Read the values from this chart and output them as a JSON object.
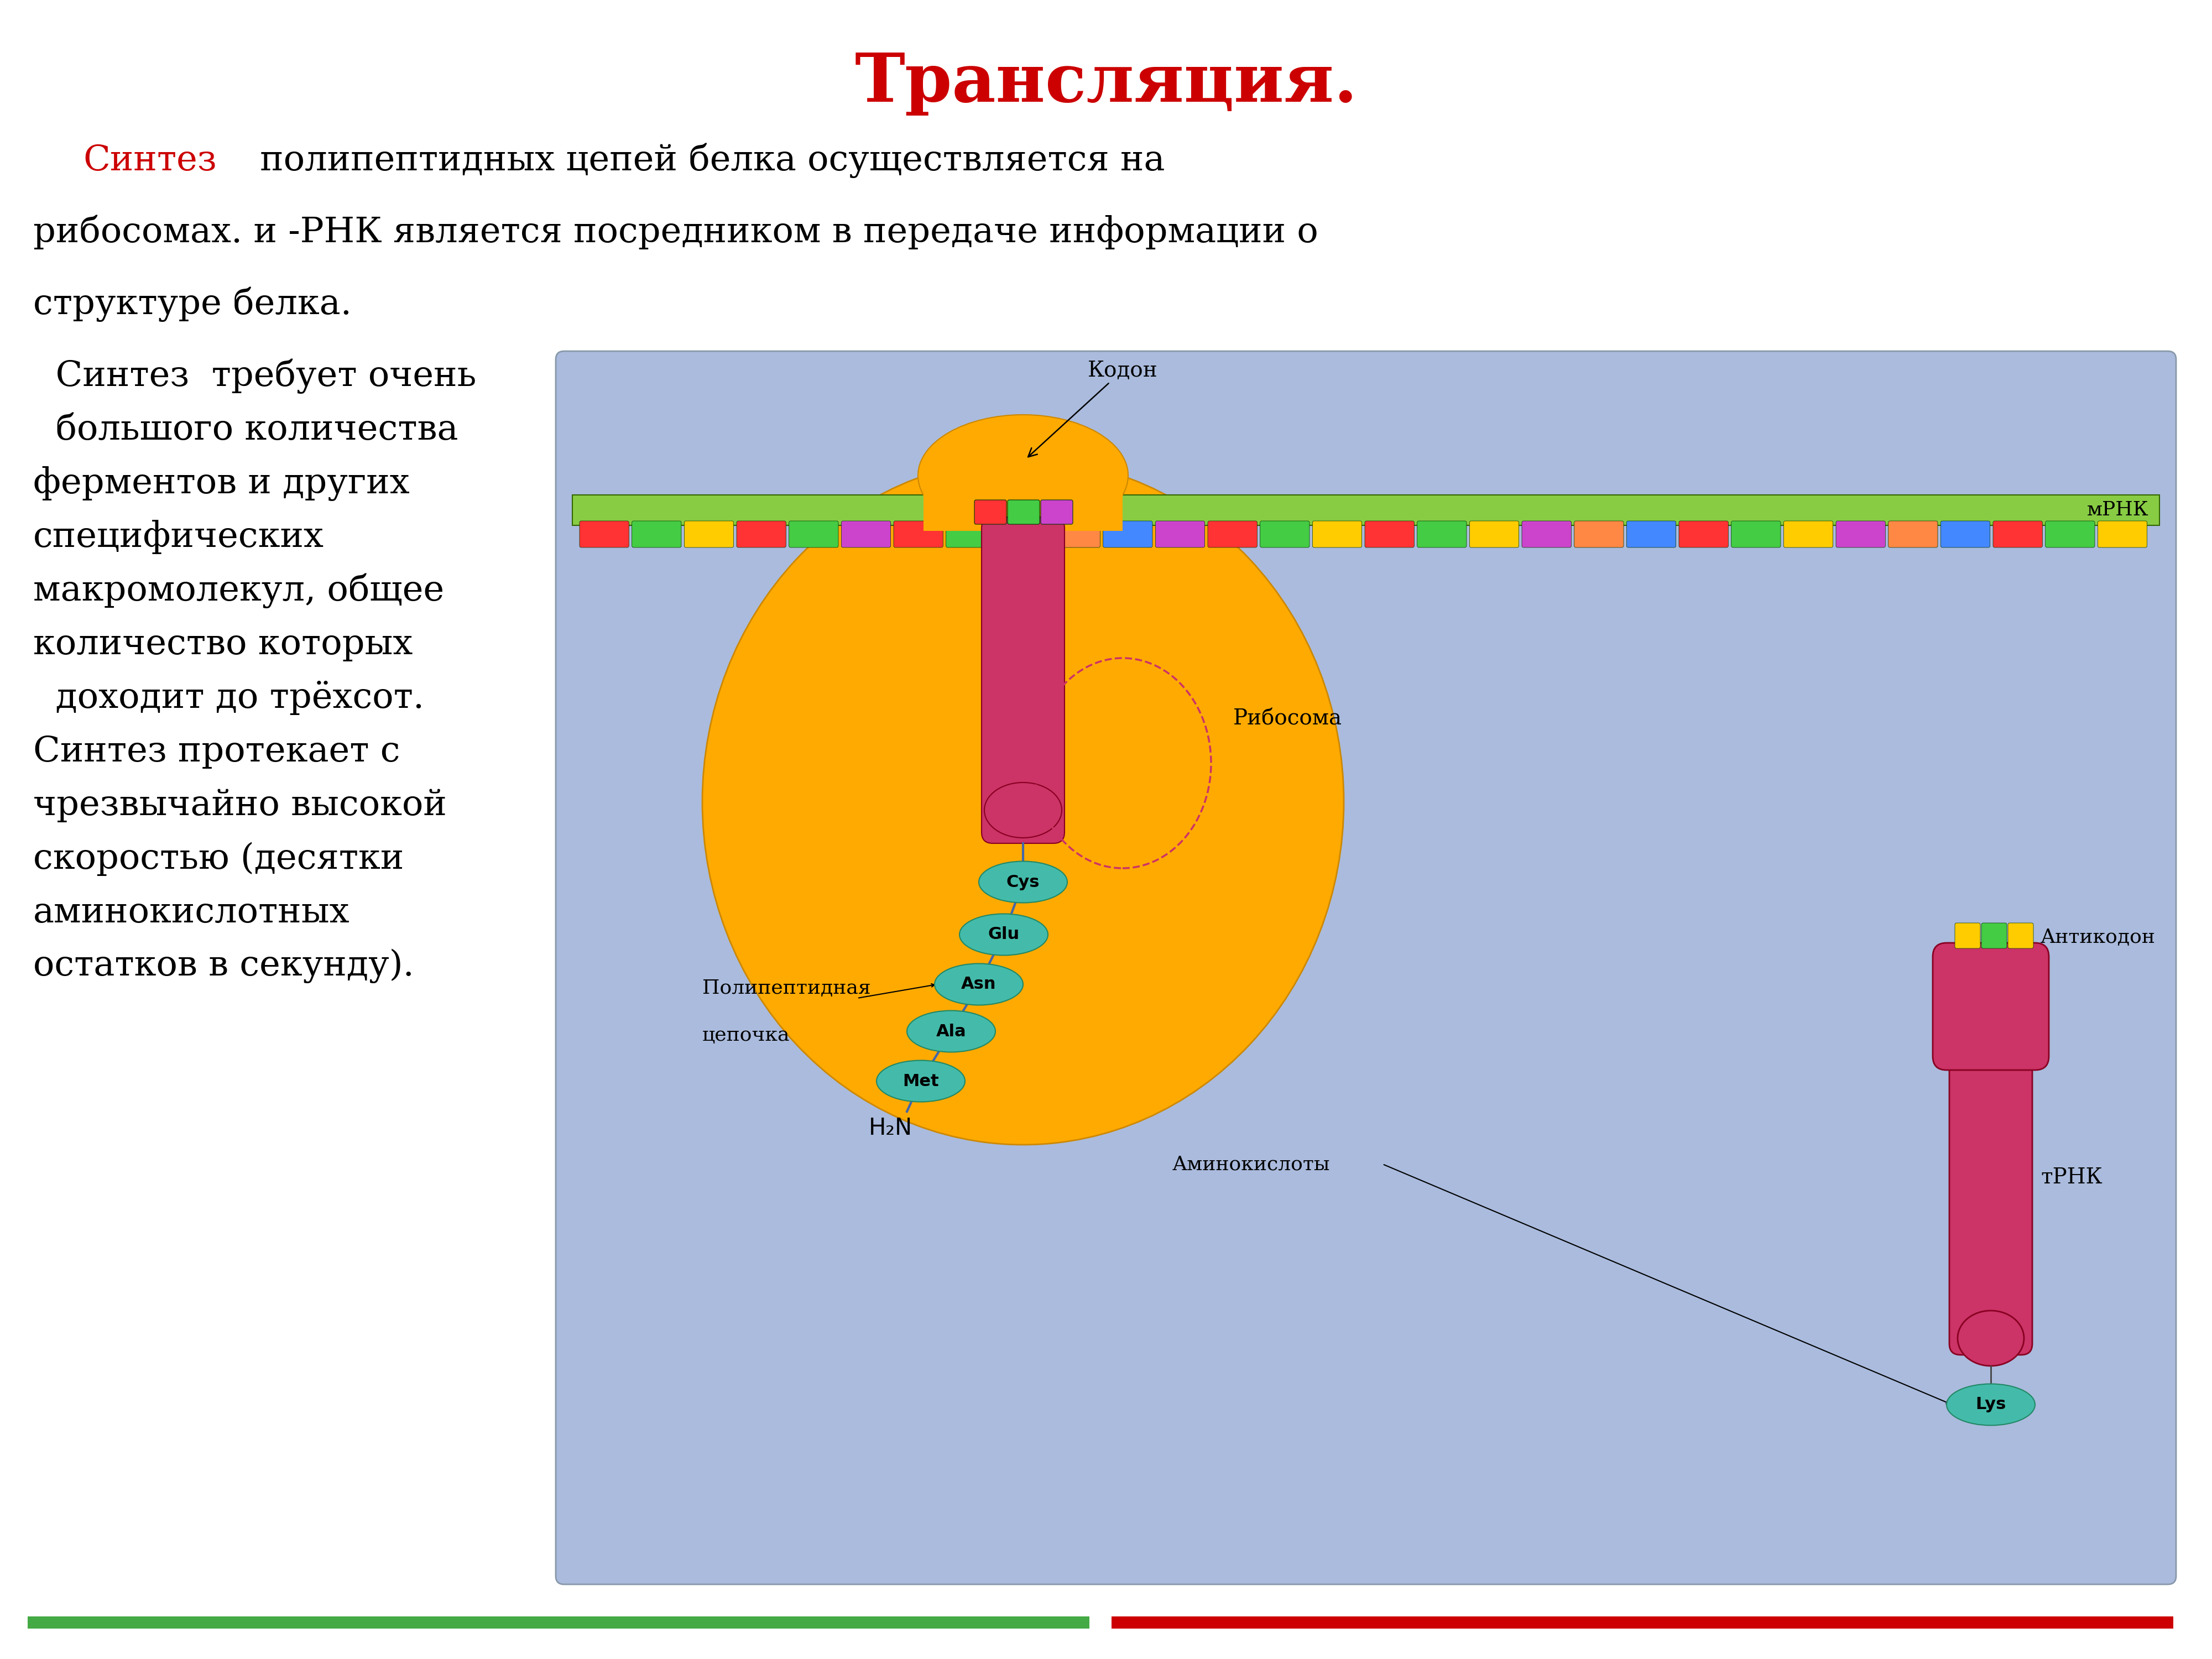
{
  "title": "Трансляция.",
  "title_color": "#cc0000",
  "title_fontsize": 88,
  "bg_color": "#ffffff",
  "border_color": "#000000",
  "text_intro_line1_red": "Синтез",
  "text_intro_line1_black": " полипептидных цепей белка осуществляется на",
  "text_intro_line2": "рибосомах. и -РНК является посредником в передаче информации о",
  "text_intro_line3": "структуре белка.",
  "text_body_lines": [
    "  Синтез  требует очень",
    "  большого количества",
    "ферментов и других",
    "специфических",
    "макромолекул, общее",
    "количество которых",
    "  доходит до трёхсот.",
    "Синтез протекает с",
    "чрезвычайно высокой",
    "скоростью (десятки",
    "аминокислотных",
    "остатков в секунду)."
  ],
  "text_color_black": "#000000",
  "text_color_red": "#cc0000",
  "body_fontsize": 46,
  "intro_fontsize": 46,
  "diagram_bg": "#aabbdd",
  "diagram_border": "#8899aa",
  "ribosome_color": "#ffaa00",
  "ribosome_edge": "#cc8800",
  "mrna_strip_color": "#88cc44",
  "mrna_strip_edge": "#336600",
  "codon_colors": [
    "#ff3333",
    "#44cc44",
    "#ffcc00",
    "#ff3333",
    "#44cc44",
    "#cc44cc",
    "#ff3333",
    "#44cc44",
    "#ffcc00",
    "#ff8844",
    "#4488ff",
    "#cc44cc",
    "#ff3333",
    "#44cc44",
    "#ffcc00",
    "#ff3333",
    "#44cc44",
    "#ffcc00",
    "#cc44cc",
    "#ff8844",
    "#4488ff",
    "#ff3333",
    "#44cc44",
    "#ffcc00",
    "#cc44cc",
    "#ff8844",
    "#4488ff",
    "#ff3333",
    "#44cc44",
    "#ffcc00"
  ],
  "slot_codon_colors": [
    "#ff3333",
    "#44cc44",
    "#cc44cc"
  ],
  "polypeptide_color": "#cc3366",
  "polypeptide_edge": "#880022",
  "trna_color": "#cc3366",
  "trna_edge": "#880022",
  "amino_color": "#44bbaa",
  "amino_edge": "#228866",
  "label_kodon": "Кодон",
  "label_mrna": "мРНК",
  "label_ribosome": "Рибосома",
  "label_anticodon": "Антикодон",
  "label_trna": "тРНК",
  "label_polypeptide_1": "Полипептидная",
  "label_polypeptide_2": "цепочка",
  "label_amino": "Аминокислоты",
  "label_h2n": "H₂N",
  "amino_labels": [
    "Cys",
    "Glu",
    "Asn",
    "Ala",
    "Met"
  ],
  "trna_amino_label": "Lys",
  "anticodon_colors": [
    "#ffcc00",
    "#44cc44",
    "#ffcc00"
  ],
  "bottom_bar_color1": "#44aa44",
  "bottom_bar_color2": "#cc0000",
  "line_color_poly": "#4466aa"
}
